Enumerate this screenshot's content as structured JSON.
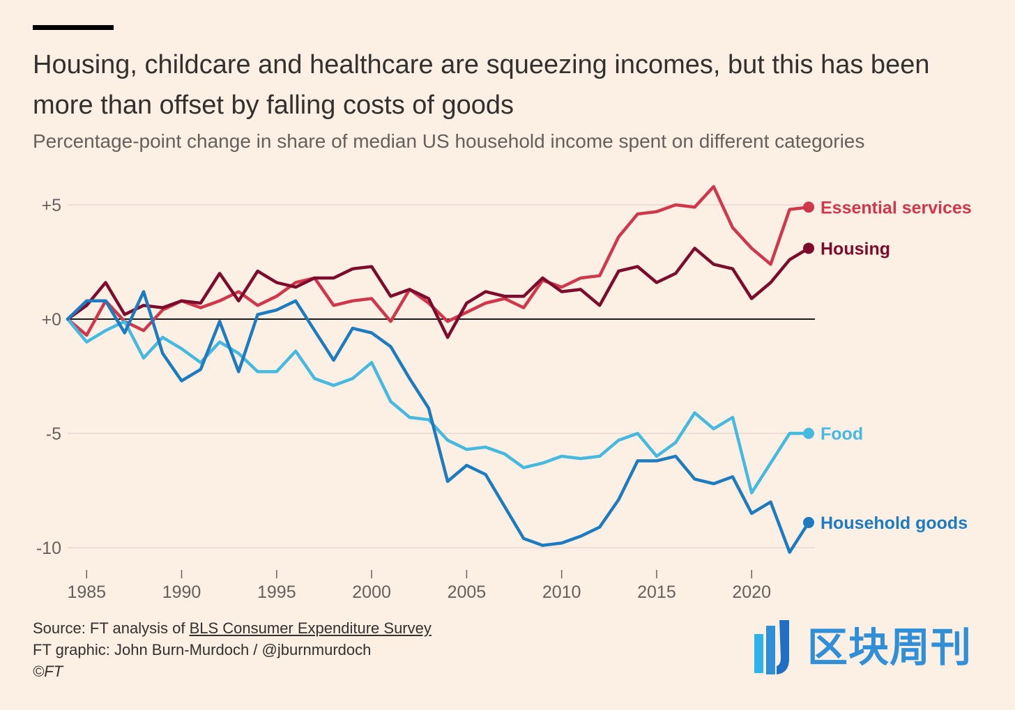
{
  "header": {
    "title": "Housing, childcare and healthcare are squeezing incomes, but this has been more than offset by falling costs of goods",
    "subtitle": "Percentage-point change in share of median US household income spent on different categories"
  },
  "footer": {
    "source_prefix": "Source: FT analysis of ",
    "source_link": "BLS Consumer Expenditure Survey",
    "credit": "FT graphic: John Burn-Murdoch / @jburnmurdoch",
    "copyright": "©FT"
  },
  "watermark": {
    "text": "区块周刊"
  },
  "chart_data": {
    "type": "line",
    "title": "Housing, childcare and healthcare are squeezing incomes, but this has been more than offset by falling costs of goods",
    "subtitle": "Percentage-point change in share of median US household income spent on different categories",
    "xlabel": "",
    "ylabel": "",
    "xlim": [
      1984,
      2023
    ],
    "ylim": [
      -11,
      6
    ],
    "x_ticks": [
      1985,
      1990,
      1995,
      2000,
      2005,
      2010,
      2015,
      2020
    ],
    "x_tick_labels": [
      "1985",
      "1990",
      "1995",
      "2000",
      "2005",
      "2010",
      "2015",
      "2020"
    ],
    "y_ticks": [
      5,
      0,
      -5,
      -10
    ],
    "y_tick_labels": [
      "+5",
      "+0",
      "-5",
      "-10"
    ],
    "grid": true,
    "legend": "direct labels at line ends (right)",
    "x": [
      1984,
      1985,
      1986,
      1987,
      1988,
      1989,
      1990,
      1991,
      1992,
      1993,
      1994,
      1995,
      1996,
      1997,
      1998,
      1999,
      2000,
      2001,
      2002,
      2003,
      2004,
      2005,
      2006,
      2007,
      2008,
      2009,
      2010,
      2011,
      2012,
      2013,
      2014,
      2015,
      2016,
      2017,
      2018,
      2019,
      2020,
      2021,
      2022,
      2023
    ],
    "series": [
      {
        "name": "Essential services",
        "color": "#d0374b",
        "values": [
          0,
          -0.7,
          0.8,
          -0.1,
          -0.5,
          0.4,
          0.8,
          0.5,
          0.8,
          1.2,
          0.6,
          1.0,
          1.6,
          1.8,
          0.6,
          0.8,
          0.9,
          -0.1,
          1.3,
          0.7,
          -0.1,
          0.3,
          0.7,
          0.9,
          0.5,
          1.7,
          1.4,
          1.8,
          1.9,
          3.6,
          4.6,
          4.7,
          5.0,
          4.9,
          5.8,
          4.0,
          3.1,
          2.4,
          4.8,
          4.9
        ]
      },
      {
        "name": "Housing",
        "color": "#7d0c2c",
        "values": [
          0,
          0.6,
          1.6,
          0.2,
          0.6,
          0.5,
          0.8,
          0.7,
          2.0,
          0.8,
          2.1,
          1.6,
          1.4,
          1.8,
          1.8,
          2.2,
          2.3,
          1.0,
          1.3,
          0.9,
          -0.8,
          0.7,
          1.2,
          1.0,
          1.0,
          1.8,
          1.2,
          1.3,
          0.6,
          2.1,
          2.3,
          1.6,
          2.0,
          3.1,
          2.4,
          2.2,
          0.9,
          1.6,
          2.6,
          3.1
        ]
      },
      {
        "name": "Food",
        "color": "#45b9e0",
        "values": [
          0,
          -1.0,
          -0.5,
          -0.1,
          -1.7,
          -0.8,
          -1.3,
          -1.9,
          -1.0,
          -1.5,
          -2.3,
          -2.3,
          -1.4,
          -2.6,
          -2.9,
          -2.6,
          -1.9,
          -3.6,
          -4.3,
          -4.4,
          -5.3,
          -5.7,
          -5.6,
          -5.9,
          -6.5,
          -6.3,
          -6.0,
          -6.1,
          -6.0,
          -5.3,
          -5.0,
          -6.0,
          -5.4,
          -4.1,
          -4.8,
          -4.3,
          -7.6,
          -6.3,
          -5.0,
          -5.0
        ]
      },
      {
        "name": "Household goods",
        "color": "#1c7cbf",
        "values": [
          0,
          0.8,
          0.8,
          -0.6,
          1.2,
          -1.5,
          -2.7,
          -2.2,
          -0.1,
          -2.3,
          0.2,
          0.4,
          0.8,
          -0.5,
          -1.8,
          -0.4,
          -0.6,
          -1.2,
          -2.6,
          -3.9,
          -7.1,
          -6.4,
          -6.8,
          -8.2,
          -9.6,
          -9.9,
          -9.8,
          -9.5,
          -9.1,
          -7.9,
          -6.2,
          -6.2,
          -6.0,
          -7.0,
          -7.2,
          -6.9,
          -8.5,
          -8.0,
          -10.2,
          -8.9
        ]
      }
    ]
  }
}
